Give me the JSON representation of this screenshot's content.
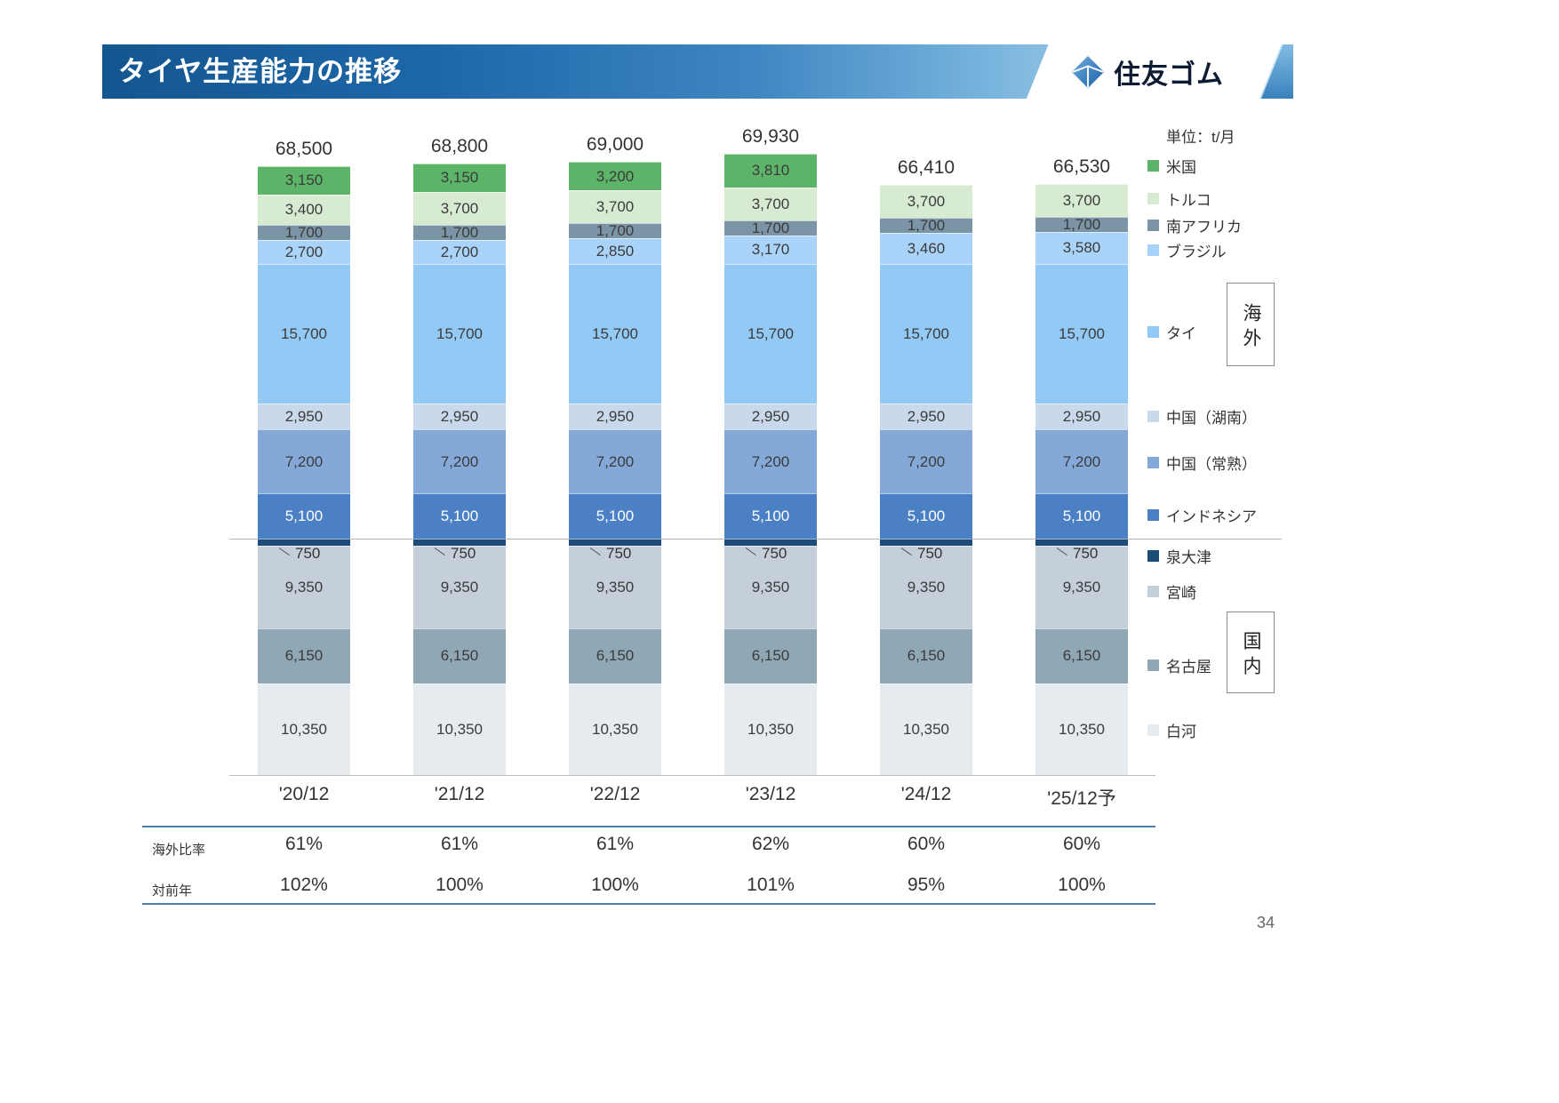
{
  "header": {
    "title": "タイヤ生産能力の推移",
    "logo_text": "住友ゴム"
  },
  "unit_label": "単位：t/月",
  "groups": {
    "overseas": "海外",
    "domestic": "国内"
  },
  "page_number": "34",
  "chart_data": {
    "type": "bar",
    "stacked": true,
    "unit": "t/月",
    "ylim": [
      0,
      70000
    ],
    "legend_position": "right",
    "categories": [
      "'20/12",
      "'21/12",
      "'22/12",
      "'23/12",
      "'24/12",
      "'25/12予"
    ],
    "totals": [
      68500,
      68800,
      69000,
      69930,
      66410,
      66530
    ],
    "series": [
      {
        "name": "米国",
        "group": "海外",
        "color": "#5cb468",
        "values": [
          3150,
          3150,
          3200,
          3810,
          0,
          0
        ]
      },
      {
        "name": "トルコ",
        "group": "海外",
        "color": "#d7ebd3",
        "values": [
          3400,
          3700,
          3700,
          3700,
          3700,
          3700
        ]
      },
      {
        "name": "南アフリカ",
        "group": "海外",
        "color": "#7b94a6",
        "values": [
          1700,
          1700,
          1700,
          1700,
          1700,
          1700
        ]
      },
      {
        "name": "ブラジル",
        "group": "海外",
        "color": "#a9d3f8",
        "values": [
          2700,
          2700,
          2850,
          3170,
          3460,
          3580
        ]
      },
      {
        "name": "タイ",
        "group": "海外",
        "color": "#93c9f5",
        "values": [
          15700,
          15700,
          15700,
          15700,
          15700,
          15700
        ]
      },
      {
        "name": "中国（湖南）",
        "group": "海外",
        "color": "#c9d8eb",
        "values": [
          2950,
          2950,
          2950,
          2950,
          2950,
          2950
        ]
      },
      {
        "name": "中国（常熟）",
        "group": "海外",
        "color": "#84a9d9",
        "values": [
          7200,
          7200,
          7200,
          7200,
          7200,
          7200
        ]
      },
      {
        "name": "インドネシア",
        "group": "海外",
        "color": "#4c80c4",
        "text": "light",
        "values": [
          5100,
          5100,
          5100,
          5100,
          5100,
          5100
        ]
      },
      {
        "name": "泉大津",
        "group": "国内",
        "color": "#1c4c77",
        "label_outside": true,
        "values": [
          750,
          750,
          750,
          750,
          750,
          750
        ]
      },
      {
        "name": "宮崎",
        "group": "国内",
        "color": "#c5cfd9",
        "values": [
          9350,
          9350,
          9350,
          9350,
          9350,
          9350
        ]
      },
      {
        "name": "名古屋",
        "group": "国内",
        "color": "#90a7b6",
        "values": [
          6150,
          6150,
          6150,
          6150,
          6150,
          6150
        ]
      },
      {
        "name": "白河",
        "group": "国内",
        "color": "#e6ebf0",
        "values": [
          10350,
          10350,
          10350,
          10350,
          10350,
          10350
        ]
      }
    ],
    "table_rows": [
      {
        "label": "海外比率",
        "values": [
          "61%",
          "61%",
          "61%",
          "62%",
          "60%",
          "60%"
        ]
      },
      {
        "label": "対前年",
        "values": [
          "102%",
          "100%",
          "100%",
          "101%",
          "95%",
          "100%"
        ]
      }
    ]
  }
}
